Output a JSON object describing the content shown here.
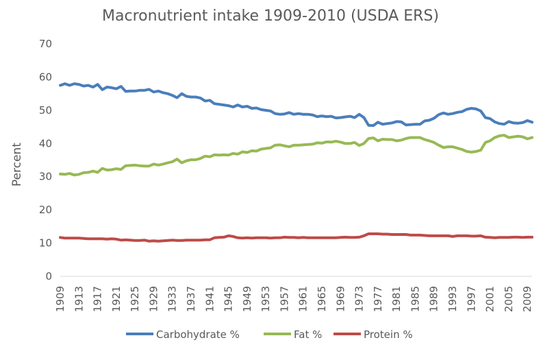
{
  "chart_data": {
    "type": "line",
    "title": "Macronutrient intake 1909-2010 (USDA ERS)",
    "xlabel": "",
    "ylabel": "Percent",
    "ylim": [
      0,
      70
    ],
    "yticks": [
      0,
      10,
      20,
      30,
      40,
      50,
      60,
      70
    ],
    "xlim": [
      1909,
      2010
    ],
    "xtick_labels": [
      "1909",
      "1913",
      "1917",
      "1921",
      "1925",
      "1929",
      "1933",
      "1937",
      "1941",
      "1945",
      "1949",
      "1953",
      "1957",
      "1961",
      "1965",
      "1969",
      "1973",
      "1977",
      "1981",
      "1985",
      "1989",
      "1993",
      "1997",
      "2001",
      "2005",
      "2009"
    ],
    "grid": false,
    "legend_position": "bottom",
    "series": [
      {
        "name": "Carbohydrate %",
        "color": "#4a7ebb",
        "points": [
          [
            1909,
            57.5
          ],
          [
            1910,
            58
          ],
          [
            1911,
            57.5
          ],
          [
            1912,
            58
          ],
          [
            1913,
            57.8
          ],
          [
            1914,
            57.3
          ],
          [
            1915,
            57.5
          ],
          [
            1916,
            57
          ],
          [
            1917,
            57.8
          ],
          [
            1918,
            56.2
          ],
          [
            1919,
            57
          ],
          [
            1920,
            56.8
          ],
          [
            1921,
            56.5
          ],
          [
            1922,
            57.2
          ],
          [
            1923,
            55.7
          ],
          [
            1924,
            55.8
          ],
          [
            1925,
            55.8
          ],
          [
            1926,
            56
          ],
          [
            1927,
            56
          ],
          [
            1928,
            56.3
          ],
          [
            1929,
            55.5
          ],
          [
            1930,
            55.8
          ],
          [
            1931,
            55.3
          ],
          [
            1932,
            55
          ],
          [
            1933,
            54.5
          ],
          [
            1934,
            53.8
          ],
          [
            1935,
            55
          ],
          [
            1936,
            54.2
          ],
          [
            1937,
            54
          ],
          [
            1938,
            54
          ],
          [
            1939,
            53.7
          ],
          [
            1940,
            52.8
          ],
          [
            1941,
            53
          ],
          [
            1942,
            52
          ],
          [
            1943,
            51.8
          ],
          [
            1944,
            51.6
          ],
          [
            1945,
            51.4
          ],
          [
            1946,
            51
          ],
          [
            1947,
            51.6
          ],
          [
            1948,
            51
          ],
          [
            1949,
            51.2
          ],
          [
            1950,
            50.6
          ],
          [
            1951,
            50.7
          ],
          [
            1952,
            50.2
          ],
          [
            1953,
            50
          ],
          [
            1954,
            49.8
          ],
          [
            1955,
            49
          ],
          [
            1956,
            48.8
          ],
          [
            1957,
            48.9
          ],
          [
            1958,
            49.3
          ],
          [
            1959,
            48.8
          ],
          [
            1960,
            49
          ],
          [
            1961,
            48.8
          ],
          [
            1962,
            48.8
          ],
          [
            1963,
            48.6
          ],
          [
            1964,
            48.1
          ],
          [
            1965,
            48.3
          ],
          [
            1966,
            48.1
          ],
          [
            1967,
            48.2
          ],
          [
            1968,
            47.7
          ],
          [
            1969,
            47.8
          ],
          [
            1970,
            48
          ],
          [
            1971,
            48.2
          ],
          [
            1972,
            47.8
          ],
          [
            1973,
            48.8
          ],
          [
            1974,
            47.8
          ],
          [
            1975,
            45.5
          ],
          [
            1976,
            45.4
          ],
          [
            1977,
            46.4
          ],
          [
            1978,
            45.8
          ],
          [
            1979,
            46
          ],
          [
            1980,
            46.2
          ],
          [
            1981,
            46.6
          ],
          [
            1982,
            46.5
          ],
          [
            1983,
            45.6
          ],
          [
            1984,
            45.7
          ],
          [
            1985,
            45.8
          ],
          [
            1986,
            45.8
          ],
          [
            1987,
            46.8
          ],
          [
            1988,
            47
          ],
          [
            1989,
            47.6
          ],
          [
            1990,
            48.7
          ],
          [
            1991,
            49.2
          ],
          [
            1992,
            48.8
          ],
          [
            1993,
            49
          ],
          [
            1994,
            49.4
          ],
          [
            1995,
            49.6
          ],
          [
            1996,
            50.3
          ],
          [
            1997,
            50.6
          ],
          [
            1998,
            50.4
          ],
          [
            1999,
            49.8
          ],
          [
            2000,
            47.8
          ],
          [
            2001,
            47.5
          ],
          [
            2002,
            46.5
          ],
          [
            2003,
            46
          ],
          [
            2004,
            45.8
          ],
          [
            2005,
            46.6
          ],
          [
            2006,
            46.2
          ],
          [
            2007,
            46.1
          ],
          [
            2008,
            46.3
          ],
          [
            2009,
            46.9
          ],
          [
            2010,
            46.4
          ]
        ]
      },
      {
        "name": "Fat %",
        "color": "#98b954",
        "points": [
          [
            1909,
            30.8
          ],
          [
            1910,
            30.7
          ],
          [
            1911,
            31
          ],
          [
            1912,
            30.5
          ],
          [
            1913,
            30.7
          ],
          [
            1914,
            31.2
          ],
          [
            1915,
            31.3
          ],
          [
            1916,
            31.7
          ],
          [
            1917,
            31.3
          ],
          [
            1918,
            32.5
          ],
          [
            1919,
            32
          ],
          [
            1920,
            32.1
          ],
          [
            1921,
            32.4
          ],
          [
            1922,
            32.2
          ],
          [
            1923,
            33.3
          ],
          [
            1924,
            33.4
          ],
          [
            1925,
            33.5
          ],
          [
            1926,
            33.3
          ],
          [
            1927,
            33.2
          ],
          [
            1928,
            33.2
          ],
          [
            1929,
            33.8
          ],
          [
            1930,
            33.5
          ],
          [
            1931,
            33.8
          ],
          [
            1932,
            34.2
          ],
          [
            1933,
            34.5
          ],
          [
            1934,
            35.3
          ],
          [
            1935,
            34.2
          ],
          [
            1936,
            34.8
          ],
          [
            1937,
            35.1
          ],
          [
            1938,
            35.1
          ],
          [
            1939,
            35.5
          ],
          [
            1940,
            36.2
          ],
          [
            1941,
            36
          ],
          [
            1942,
            36.6
          ],
          [
            1943,
            36.5
          ],
          [
            1944,
            36.6
          ],
          [
            1945,
            36.5
          ],
          [
            1946,
            37
          ],
          [
            1947,
            36.8
          ],
          [
            1948,
            37.5
          ],
          [
            1949,
            37.3
          ],
          [
            1950,
            37.8
          ],
          [
            1951,
            37.7
          ],
          [
            1952,
            38.3
          ],
          [
            1953,
            38.5
          ],
          [
            1954,
            38.7
          ],
          [
            1955,
            39.5
          ],
          [
            1956,
            39.6
          ],
          [
            1957,
            39.3
          ],
          [
            1958,
            39
          ],
          [
            1959,
            39.5
          ],
          [
            1960,
            39.5
          ],
          [
            1961,
            39.6
          ],
          [
            1962,
            39.7
          ],
          [
            1963,
            39.8
          ],
          [
            1964,
            40.2
          ],
          [
            1965,
            40.1
          ],
          [
            1966,
            40.5
          ],
          [
            1967,
            40.4
          ],
          [
            1968,
            40.7
          ],
          [
            1969,
            40.4
          ],
          [
            1970,
            40
          ],
          [
            1971,
            40
          ],
          [
            1972,
            40.3
          ],
          [
            1973,
            39.4
          ],
          [
            1974,
            40
          ],
          [
            1975,
            41.5
          ],
          [
            1976,
            41.7
          ],
          [
            1977,
            40.8
          ],
          [
            1978,
            41.3
          ],
          [
            1979,
            41.2
          ],
          [
            1980,
            41.2
          ],
          [
            1981,
            40.8
          ],
          [
            1982,
            41
          ],
          [
            1983,
            41.5
          ],
          [
            1984,
            41.8
          ],
          [
            1985,
            41.8
          ],
          [
            1986,
            41.8
          ],
          [
            1987,
            41.2
          ],
          [
            1988,
            40.8
          ],
          [
            1989,
            40.3
          ],
          [
            1990,
            39.5
          ],
          [
            1991,
            38.8
          ],
          [
            1992,
            39
          ],
          [
            1993,
            39
          ],
          [
            1994,
            38.6
          ],
          [
            1995,
            38.2
          ],
          [
            1996,
            37.6
          ],
          [
            1997,
            37.4
          ],
          [
            1998,
            37.6
          ],
          [
            1999,
            38
          ],
          [
            2000,
            40.3
          ],
          [
            2001,
            40.8
          ],
          [
            2002,
            41.8
          ],
          [
            2003,
            42.3
          ],
          [
            2004,
            42.5
          ],
          [
            2005,
            41.8
          ],
          [
            2006,
            42
          ],
          [
            2007,
            42.2
          ],
          [
            2008,
            42
          ],
          [
            2009,
            41.4
          ],
          [
            2010,
            41.8
          ]
        ]
      },
      {
        "name": "Protein %",
        "color": "#be4b48",
        "points": [
          [
            1909,
            11.7
          ],
          [
            1910,
            11.5
          ],
          [
            1911,
            11.5
          ],
          [
            1912,
            11.5
          ],
          [
            1913,
            11.5
          ],
          [
            1914,
            11.4
          ],
          [
            1915,
            11.3
          ],
          [
            1916,
            11.3
          ],
          [
            1917,
            11.3
          ],
          [
            1918,
            11.3
          ],
          [
            1919,
            11.2
          ],
          [
            1920,
            11.3
          ],
          [
            1921,
            11.2
          ],
          [
            1922,
            10.9
          ],
          [
            1923,
            11
          ],
          [
            1924,
            10.9
          ],
          [
            1925,
            10.8
          ],
          [
            1926,
            10.8
          ],
          [
            1927,
            10.9
          ],
          [
            1928,
            10.6
          ],
          [
            1929,
            10.7
          ],
          [
            1930,
            10.6
          ],
          [
            1931,
            10.7
          ],
          [
            1932,
            10.8
          ],
          [
            1933,
            10.9
          ],
          [
            1934,
            10.8
          ],
          [
            1935,
            10.8
          ],
          [
            1936,
            10.9
          ],
          [
            1937,
            10.9
          ],
          [
            1938,
            10.9
          ],
          [
            1939,
            10.9
          ],
          [
            1940,
            11
          ],
          [
            1941,
            11
          ],
          [
            1942,
            11.6
          ],
          [
            1943,
            11.7
          ],
          [
            1944,
            11.8
          ],
          [
            1945,
            12.2
          ],
          [
            1946,
            12
          ],
          [
            1947,
            11.6
          ],
          [
            1948,
            11.5
          ],
          [
            1949,
            11.6
          ],
          [
            1950,
            11.5
          ],
          [
            1951,
            11.6
          ],
          [
            1952,
            11.6
          ],
          [
            1953,
            11.6
          ],
          [
            1954,
            11.5
          ],
          [
            1955,
            11.6
          ],
          [
            1956,
            11.6
          ],
          [
            1957,
            11.8
          ],
          [
            1958,
            11.7
          ],
          [
            1959,
            11.7
          ],
          [
            1960,
            11.6
          ],
          [
            1961,
            11.7
          ],
          [
            1962,
            11.6
          ],
          [
            1963,
            11.6
          ],
          [
            1964,
            11.6
          ],
          [
            1965,
            11.6
          ],
          [
            1966,
            11.6
          ],
          [
            1967,
            11.6
          ],
          [
            1968,
            11.6
          ],
          [
            1969,
            11.7
          ],
          [
            1970,
            11.8
          ],
          [
            1971,
            11.7
          ],
          [
            1972,
            11.7
          ],
          [
            1973,
            11.8
          ],
          [
            1974,
            12.2
          ],
          [
            1975,
            12.8
          ],
          [
            1976,
            12.8
          ],
          [
            1977,
            12.8
          ],
          [
            1978,
            12.7
          ],
          [
            1979,
            12.7
          ],
          [
            1980,
            12.6
          ],
          [
            1981,
            12.6
          ],
          [
            1982,
            12.6
          ],
          [
            1983,
            12.6
          ],
          [
            1984,
            12.4
          ],
          [
            1985,
            12.4
          ],
          [
            1986,
            12.4
          ],
          [
            1987,
            12.3
          ],
          [
            1988,
            12.2
          ],
          [
            1989,
            12.2
          ],
          [
            1990,
            12.2
          ],
          [
            1991,
            12.2
          ],
          [
            1992,
            12.2
          ],
          [
            1993,
            12
          ],
          [
            1994,
            12.2
          ],
          [
            1995,
            12.2
          ],
          [
            1996,
            12.2
          ],
          [
            1997,
            12.1
          ],
          [
            1998,
            12.1
          ],
          [
            1999,
            12.2
          ],
          [
            2000,
            11.8
          ],
          [
            2001,
            11.7
          ],
          [
            2002,
            11.6
          ],
          [
            2003,
            11.7
          ],
          [
            2004,
            11.7
          ],
          [
            2005,
            11.7
          ],
          [
            2006,
            11.8
          ],
          [
            2007,
            11.8
          ],
          [
            2008,
            11.7
          ],
          [
            2009,
            11.8
          ],
          [
            2010,
            11.8
          ]
        ]
      }
    ]
  }
}
